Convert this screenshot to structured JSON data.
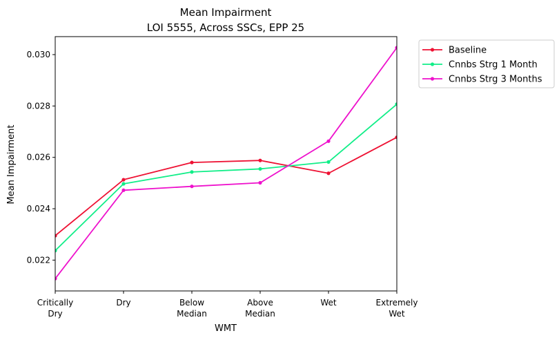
{
  "chart_data": {
    "type": "line",
    "title": "Mean Impairment",
    "subtitle": "LOI 5555, Across SSCs, EPP 25",
    "xlabel": "WMT",
    "ylabel": "Mean Impairment",
    "categories": [
      [
        "Critically",
        "Dry"
      ],
      [
        "Dry"
      ],
      [
        "Below",
        "Median"
      ],
      [
        "Above",
        "Median"
      ],
      [
        "Wet"
      ],
      [
        "Extremely",
        "Wet"
      ]
    ],
    "ylim": [
      0.0208,
      0.0307
    ],
    "yticks": [
      0.022,
      0.024,
      0.026,
      0.028,
      0.03
    ],
    "ytick_labels": [
      "0.022",
      "0.024",
      "0.026",
      "0.028",
      "0.030"
    ],
    "grid": false,
    "legend_position": "outside-top-right",
    "series": [
      {
        "name": "Baseline",
        "color": "#ee1133",
        "values": [
          0.02295,
          0.02513,
          0.0258,
          0.02588,
          0.02538,
          0.02678
        ]
      },
      {
        "name": "Cnnbs Strg 1 Month",
        "color": "#11ee88",
        "values": [
          0.02237,
          0.02497,
          0.02543,
          0.02555,
          0.02582,
          0.02807
        ]
      },
      {
        "name": "Cnnbs Strg 3 Months",
        "color": "#ee11cc",
        "values": [
          0.02128,
          0.02472,
          0.02487,
          0.02501,
          0.02663,
          0.03027
        ]
      }
    ]
  }
}
